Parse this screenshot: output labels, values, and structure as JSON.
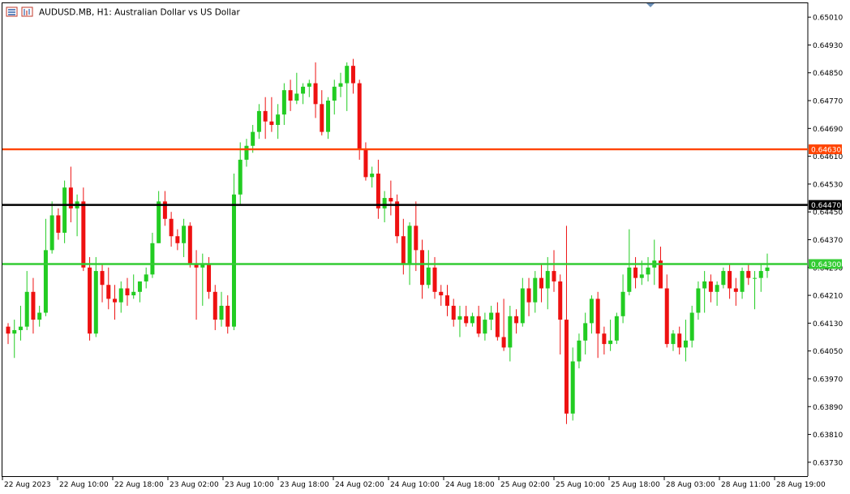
{
  "header": {
    "symbol_title": "AUDUSD.MB, H1:  Australian Dollar vs US Dollar",
    "icons": [
      "bars-menu-icon",
      "chart-properties-icon"
    ]
  },
  "colors": {
    "bull": "#22cc22",
    "bear": "#ee1111",
    "wick": "#333333",
    "background": "#ffffff",
    "axis": "#000000",
    "resistance_line": "#ff4400",
    "pivot_line": "#000000",
    "support_line": "#33cc33",
    "period_marker": "#6a8fb8"
  },
  "chart_data": {
    "type": "candlestick",
    "title": "AUDUSD.MB, H1:  Australian Dollar vs US Dollar",
    "ylim": [
      0.6369,
      0.6505
    ],
    "yticks": [
      "0.65010",
      "0.64930",
      "0.64850",
      "0.64770",
      "0.64690",
      "0.64610",
      "0.64530",
      "0.64450",
      "0.64370",
      "0.64290",
      "0.64210",
      "0.64130",
      "0.64050",
      "0.63970",
      "0.63890",
      "0.63810",
      "0.63730"
    ],
    "xticks": [
      "22 Aug 2023",
      "22 Aug 10:00",
      "22 Aug 18:00",
      "23 Aug 02:00",
      "23 Aug 10:00",
      "23 Aug 18:00",
      "24 Aug 02:00",
      "24 Aug 10:00",
      "24 Aug 18:00",
      "25 Aug 02:00",
      "25 Aug 10:00",
      "25 Aug 18:00",
      "28 Aug 03:00",
      "28 Aug 11:00",
      "28 Aug 19:00"
    ],
    "hlines": [
      {
        "label": "0.64630",
        "value": 0.6463,
        "color": "#ff4400"
      },
      {
        "label": "0.64470",
        "value": 0.6447,
        "color": "#000000"
      },
      {
        "label": "0.64300",
        "value": 0.643,
        "color": "#33cc33"
      }
    ],
    "candles": [
      [
        0.6412,
        0.6413,
        0.6407,
        0.641
      ],
      [
        0.641,
        0.6414,
        0.6403,
        0.6411
      ],
      [
        0.6411,
        0.6418,
        0.6408,
        0.6412
      ],
      [
        0.6412,
        0.6428,
        0.6411,
        0.6422
      ],
      [
        0.6422,
        0.6426,
        0.641,
        0.6414
      ],
      [
        0.6414,
        0.6418,
        0.6412,
        0.6416
      ],
      [
        0.6416,
        0.6443,
        0.6415,
        0.6434
      ],
      [
        0.6434,
        0.6448,
        0.6433,
        0.6444
      ],
      [
        0.6444,
        0.6446,
        0.6437,
        0.6439
      ],
      [
        0.6439,
        0.6454,
        0.6436,
        0.6452
      ],
      [
        0.6452,
        0.6458,
        0.6442,
        0.6446
      ],
      [
        0.6446,
        0.645,
        0.6438,
        0.6448
      ],
      [
        0.6448,
        0.6452,
        0.6428,
        0.6429
      ],
      [
        0.6429,
        0.6432,
        0.6408,
        0.641
      ],
      [
        0.641,
        0.6432,
        0.6409,
        0.6428
      ],
      [
        0.6428,
        0.643,
        0.6419,
        0.6424
      ],
      [
        0.6424,
        0.6429,
        0.6417,
        0.642
      ],
      [
        0.642,
        0.6424,
        0.6414,
        0.6419
      ],
      [
        0.6419,
        0.6425,
        0.6416,
        0.6423
      ],
      [
        0.6423,
        0.6426,
        0.6418,
        0.6421
      ],
      [
        0.6421,
        0.6427,
        0.642,
        0.6422
      ],
      [
        0.6422,
        0.6425,
        0.6419,
        0.6425
      ],
      [
        0.6425,
        0.6429,
        0.6423,
        0.6427
      ],
      [
        0.6427,
        0.6439,
        0.6426,
        0.6436
      ],
      [
        0.6436,
        0.6451,
        0.6436,
        0.6448
      ],
      [
        0.6448,
        0.6451,
        0.6441,
        0.6443
      ],
      [
        0.6443,
        0.6445,
        0.6435,
        0.6438
      ],
      [
        0.6438,
        0.644,
        0.6434,
        0.6436
      ],
      [
        0.6436,
        0.6443,
        0.6432,
        0.6441
      ],
      [
        0.6441,
        0.6442,
        0.6429,
        0.643
      ],
      [
        0.643,
        0.6434,
        0.6414,
        0.6429
      ],
      [
        0.6429,
        0.6433,
        0.6418,
        0.643
      ],
      [
        0.643,
        0.6432,
        0.642,
        0.6422
      ],
      [
        0.6422,
        0.6424,
        0.6411,
        0.6414
      ],
      [
        0.6414,
        0.6422,
        0.6412,
        0.6418
      ],
      [
        0.6418,
        0.6421,
        0.641,
        0.6412
      ],
      [
        0.6412,
        0.6456,
        0.6411,
        0.645
      ],
      [
        0.645,
        0.6465,
        0.6447,
        0.646
      ],
      [
        0.646,
        0.6466,
        0.6458,
        0.6464
      ],
      [
        0.6464,
        0.647,
        0.6462,
        0.6468
      ],
      [
        0.6468,
        0.6476,
        0.6466,
        0.6474
      ],
      [
        0.6474,
        0.6478,
        0.6466,
        0.6471
      ],
      [
        0.6471,
        0.6478,
        0.6468,
        0.647
      ],
      [
        0.647,
        0.6476,
        0.6466,
        0.6473
      ],
      [
        0.6473,
        0.6482,
        0.647,
        0.648
      ],
      [
        0.648,
        0.6483,
        0.6474,
        0.6477
      ],
      [
        0.6477,
        0.6485,
        0.6476,
        0.6479
      ],
      [
        0.6479,
        0.6482,
        0.6476,
        0.6481
      ],
      [
        0.6481,
        0.6483,
        0.6478,
        0.6482
      ],
      [
        0.6482,
        0.6488,
        0.6472,
        0.6476
      ],
      [
        0.6476,
        0.648,
        0.6467,
        0.6468
      ],
      [
        0.6468,
        0.6478,
        0.6466,
        0.6477
      ],
      [
        0.6477,
        0.6483,
        0.6473,
        0.6481
      ],
      [
        0.6481,
        0.6485,
        0.6478,
        0.6482
      ],
      [
        0.6482,
        0.6488,
        0.6474,
        0.6487
      ],
      [
        0.6487,
        0.6489,
        0.6479,
        0.6482
      ],
      [
        0.6482,
        0.6483,
        0.646,
        0.6463
      ],
      [
        0.6463,
        0.6465,
        0.6454,
        0.6455
      ],
      [
        0.6455,
        0.6458,
        0.6452,
        0.6456
      ],
      [
        0.6456,
        0.646,
        0.6443,
        0.6446
      ],
      [
        0.6446,
        0.6451,
        0.6442,
        0.6449
      ],
      [
        0.6449,
        0.6454,
        0.6444,
        0.6448
      ],
      [
        0.6448,
        0.645,
        0.6436,
        0.6438
      ],
      [
        0.6438,
        0.6443,
        0.6427,
        0.643
      ],
      [
        0.643,
        0.6442,
        0.6424,
        0.6441
      ],
      [
        0.6441,
        0.6448,
        0.6428,
        0.6434
      ],
      [
        0.6434,
        0.6437,
        0.642,
        0.6424
      ],
      [
        0.6424,
        0.6434,
        0.6423,
        0.6429
      ],
      [
        0.6429,
        0.6432,
        0.642,
        0.6422
      ],
      [
        0.6422,
        0.6424,
        0.6418,
        0.6421
      ],
      [
        0.6421,
        0.6424,
        0.6415,
        0.6418
      ],
      [
        0.6418,
        0.642,
        0.6412,
        0.6414
      ],
      [
        0.6414,
        0.6418,
        0.6409,
        0.6415
      ],
      [
        0.6415,
        0.6418,
        0.6412,
        0.6413
      ],
      [
        0.6413,
        0.6416,
        0.6412,
        0.6415
      ],
      [
        0.6415,
        0.6418,
        0.6409,
        0.641
      ],
      [
        0.641,
        0.6416,
        0.6408,
        0.6414
      ],
      [
        0.6414,
        0.6418,
        0.6411,
        0.6416
      ],
      [
        0.6416,
        0.6419,
        0.6408,
        0.6409
      ],
      [
        0.6409,
        0.642,
        0.6405,
        0.6406
      ],
      [
        0.6406,
        0.6418,
        0.6402,
        0.6415
      ],
      [
        0.6415,
        0.6417,
        0.641,
        0.6413
      ],
      [
        0.6413,
        0.6426,
        0.6412,
        0.6423
      ],
      [
        0.6423,
        0.6426,
        0.6415,
        0.6419
      ],
      [
        0.6419,
        0.6428,
        0.6416,
        0.6426
      ],
      [
        0.6426,
        0.643,
        0.6419,
        0.6423
      ],
      [
        0.6423,
        0.6432,
        0.6417,
        0.6428
      ],
      [
        0.6428,
        0.6434,
        0.6422,
        0.6425
      ],
      [
        0.6425,
        0.6427,
        0.6404,
        0.6414
      ],
      [
        0.6414,
        0.6441,
        0.6384,
        0.6387
      ],
      [
        0.6387,
        0.6406,
        0.6385,
        0.6402
      ],
      [
        0.6402,
        0.641,
        0.64,
        0.6408
      ],
      [
        0.6408,
        0.6416,
        0.6404,
        0.6413
      ],
      [
        0.6413,
        0.6421,
        0.641,
        0.642
      ],
      [
        0.642,
        0.6422,
        0.6403,
        0.641
      ],
      [
        0.641,
        0.6412,
        0.6404,
        0.6407
      ],
      [
        0.6407,
        0.6414,
        0.6405,
        0.6408
      ],
      [
        0.6408,
        0.6416,
        0.6407,
        0.6415
      ],
      [
        0.6415,
        0.6427,
        0.6413,
        0.6422
      ],
      [
        0.6422,
        0.644,
        0.6421,
        0.6429
      ],
      [
        0.6429,
        0.6432,
        0.6423,
        0.6426
      ],
      [
        0.6426,
        0.6431,
        0.6424,
        0.6427
      ],
      [
        0.6427,
        0.6432,
        0.6425,
        0.6429
      ],
      [
        0.6429,
        0.6437,
        0.6424,
        0.6431
      ],
      [
        0.6431,
        0.6435,
        0.6423,
        0.6423
      ],
      [
        0.6423,
        0.6427,
        0.6406,
        0.6407
      ],
      [
        0.6407,
        0.6411,
        0.6405,
        0.641
      ],
      [
        0.641,
        0.6412,
        0.6404,
        0.6406
      ],
      [
        0.6406,
        0.6414,
        0.6402,
        0.6408
      ],
      [
        0.6408,
        0.6418,
        0.6406,
        0.6416
      ],
      [
        0.6416,
        0.6425,
        0.6414,
        0.6423
      ],
      [
        0.6423,
        0.6428,
        0.6416,
        0.6425
      ],
      [
        0.6425,
        0.6427,
        0.6419,
        0.6422
      ],
      [
        0.6422,
        0.6425,
        0.6418,
        0.6424
      ],
      [
        0.6424,
        0.6429,
        0.6423,
        0.6428
      ],
      [
        0.6428,
        0.643,
        0.642,
        0.6423
      ],
      [
        0.6423,
        0.6426,
        0.6418,
        0.6422
      ],
      [
        0.6422,
        0.6429,
        0.642,
        0.6428
      ],
      [
        0.6428,
        0.643,
        0.6424,
        0.6426
      ],
      [
        0.6426,
        0.6428,
        0.6417,
        0.6426
      ],
      [
        0.6426,
        0.643,
        0.6422,
        0.6428
      ],
      [
        0.6428,
        0.6433,
        0.6426,
        0.6429
      ]
    ]
  }
}
